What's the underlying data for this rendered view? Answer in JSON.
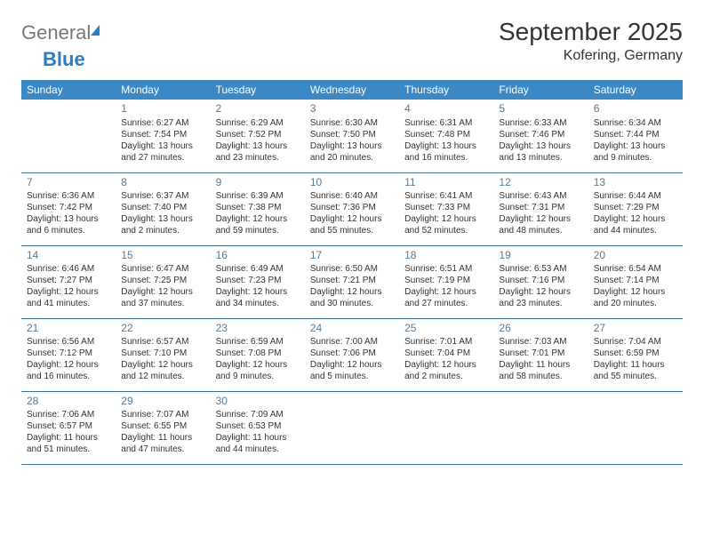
{
  "logo": {
    "text1": "General",
    "text2": "Blue"
  },
  "title": "September 2025",
  "location": "Kofering, Germany",
  "colors": {
    "header_bg": "#3b88c4",
    "header_text": "#ffffff",
    "border": "#3b6f9a",
    "daynum": "#5a7a94",
    "body_text": "#333333",
    "logo_blue": "#2d7dc0",
    "background": "#ffffff"
  },
  "typography": {
    "title_fontsize": 28,
    "location_fontsize": 16,
    "header_fontsize": 12,
    "daynum_fontsize": 12,
    "cell_fontsize": 10
  },
  "weekdays": [
    "Sunday",
    "Monday",
    "Tuesday",
    "Wednesday",
    "Thursday",
    "Friday",
    "Saturday"
  ],
  "weeks": [
    [
      null,
      {
        "n": "1",
        "sr": "Sunrise: 6:27 AM",
        "ss": "Sunset: 7:54 PM",
        "d1": "Daylight: 13 hours",
        "d2": "and 27 minutes."
      },
      {
        "n": "2",
        "sr": "Sunrise: 6:29 AM",
        "ss": "Sunset: 7:52 PM",
        "d1": "Daylight: 13 hours",
        "d2": "and 23 minutes."
      },
      {
        "n": "3",
        "sr": "Sunrise: 6:30 AM",
        "ss": "Sunset: 7:50 PM",
        "d1": "Daylight: 13 hours",
        "d2": "and 20 minutes."
      },
      {
        "n": "4",
        "sr": "Sunrise: 6:31 AM",
        "ss": "Sunset: 7:48 PM",
        "d1": "Daylight: 13 hours",
        "d2": "and 16 minutes."
      },
      {
        "n": "5",
        "sr": "Sunrise: 6:33 AM",
        "ss": "Sunset: 7:46 PM",
        "d1": "Daylight: 13 hours",
        "d2": "and 13 minutes."
      },
      {
        "n": "6",
        "sr": "Sunrise: 6:34 AM",
        "ss": "Sunset: 7:44 PM",
        "d1": "Daylight: 13 hours",
        "d2": "and 9 minutes."
      }
    ],
    [
      {
        "n": "7",
        "sr": "Sunrise: 6:36 AM",
        "ss": "Sunset: 7:42 PM",
        "d1": "Daylight: 13 hours",
        "d2": "and 6 minutes."
      },
      {
        "n": "8",
        "sr": "Sunrise: 6:37 AM",
        "ss": "Sunset: 7:40 PM",
        "d1": "Daylight: 13 hours",
        "d2": "and 2 minutes."
      },
      {
        "n": "9",
        "sr": "Sunrise: 6:39 AM",
        "ss": "Sunset: 7:38 PM",
        "d1": "Daylight: 12 hours",
        "d2": "and 59 minutes."
      },
      {
        "n": "10",
        "sr": "Sunrise: 6:40 AM",
        "ss": "Sunset: 7:36 PM",
        "d1": "Daylight: 12 hours",
        "d2": "and 55 minutes."
      },
      {
        "n": "11",
        "sr": "Sunrise: 6:41 AM",
        "ss": "Sunset: 7:33 PM",
        "d1": "Daylight: 12 hours",
        "d2": "and 52 minutes."
      },
      {
        "n": "12",
        "sr": "Sunrise: 6:43 AM",
        "ss": "Sunset: 7:31 PM",
        "d1": "Daylight: 12 hours",
        "d2": "and 48 minutes."
      },
      {
        "n": "13",
        "sr": "Sunrise: 6:44 AM",
        "ss": "Sunset: 7:29 PM",
        "d1": "Daylight: 12 hours",
        "d2": "and 44 minutes."
      }
    ],
    [
      {
        "n": "14",
        "sr": "Sunrise: 6:46 AM",
        "ss": "Sunset: 7:27 PM",
        "d1": "Daylight: 12 hours",
        "d2": "and 41 minutes."
      },
      {
        "n": "15",
        "sr": "Sunrise: 6:47 AM",
        "ss": "Sunset: 7:25 PM",
        "d1": "Daylight: 12 hours",
        "d2": "and 37 minutes."
      },
      {
        "n": "16",
        "sr": "Sunrise: 6:49 AM",
        "ss": "Sunset: 7:23 PM",
        "d1": "Daylight: 12 hours",
        "d2": "and 34 minutes."
      },
      {
        "n": "17",
        "sr": "Sunrise: 6:50 AM",
        "ss": "Sunset: 7:21 PM",
        "d1": "Daylight: 12 hours",
        "d2": "and 30 minutes."
      },
      {
        "n": "18",
        "sr": "Sunrise: 6:51 AM",
        "ss": "Sunset: 7:19 PM",
        "d1": "Daylight: 12 hours",
        "d2": "and 27 minutes."
      },
      {
        "n": "19",
        "sr": "Sunrise: 6:53 AM",
        "ss": "Sunset: 7:16 PM",
        "d1": "Daylight: 12 hours",
        "d2": "and 23 minutes."
      },
      {
        "n": "20",
        "sr": "Sunrise: 6:54 AM",
        "ss": "Sunset: 7:14 PM",
        "d1": "Daylight: 12 hours",
        "d2": "and 20 minutes."
      }
    ],
    [
      {
        "n": "21",
        "sr": "Sunrise: 6:56 AM",
        "ss": "Sunset: 7:12 PM",
        "d1": "Daylight: 12 hours",
        "d2": "and 16 minutes."
      },
      {
        "n": "22",
        "sr": "Sunrise: 6:57 AM",
        "ss": "Sunset: 7:10 PM",
        "d1": "Daylight: 12 hours",
        "d2": "and 12 minutes."
      },
      {
        "n": "23",
        "sr": "Sunrise: 6:59 AM",
        "ss": "Sunset: 7:08 PM",
        "d1": "Daylight: 12 hours",
        "d2": "and 9 minutes."
      },
      {
        "n": "24",
        "sr": "Sunrise: 7:00 AM",
        "ss": "Sunset: 7:06 PM",
        "d1": "Daylight: 12 hours",
        "d2": "and 5 minutes."
      },
      {
        "n": "25",
        "sr": "Sunrise: 7:01 AM",
        "ss": "Sunset: 7:04 PM",
        "d1": "Daylight: 12 hours",
        "d2": "and 2 minutes."
      },
      {
        "n": "26",
        "sr": "Sunrise: 7:03 AM",
        "ss": "Sunset: 7:01 PM",
        "d1": "Daylight: 11 hours",
        "d2": "and 58 minutes."
      },
      {
        "n": "27",
        "sr": "Sunrise: 7:04 AM",
        "ss": "Sunset: 6:59 PM",
        "d1": "Daylight: 11 hours",
        "d2": "and 55 minutes."
      }
    ],
    [
      {
        "n": "28",
        "sr": "Sunrise: 7:06 AM",
        "ss": "Sunset: 6:57 PM",
        "d1": "Daylight: 11 hours",
        "d2": "and 51 minutes."
      },
      {
        "n": "29",
        "sr": "Sunrise: 7:07 AM",
        "ss": "Sunset: 6:55 PM",
        "d1": "Daylight: 11 hours",
        "d2": "and 47 minutes."
      },
      {
        "n": "30",
        "sr": "Sunrise: 7:09 AM",
        "ss": "Sunset: 6:53 PM",
        "d1": "Daylight: 11 hours",
        "d2": "and 44 minutes."
      },
      null,
      null,
      null,
      null
    ]
  ]
}
